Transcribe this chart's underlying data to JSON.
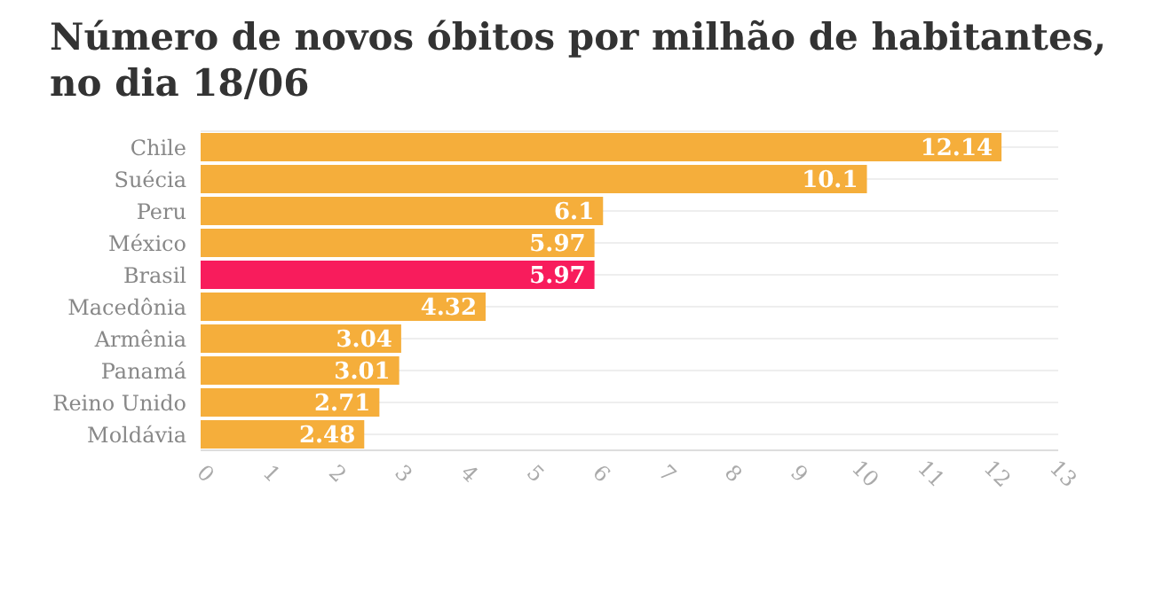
{
  "chart_data": {
    "type": "bar",
    "orientation": "horizontal",
    "title": "Número de novos óbitos por milhão de habitantes, no dia 18/06",
    "categories": [
      "Chile",
      "Suécia",
      "Peru",
      "México",
      "Brasil",
      "Macedônia",
      "Armênia",
      "Panamá",
      "Reino Unido",
      "Moldávia"
    ],
    "values": [
      12.14,
      10.1,
      6.1,
      5.97,
      5.97,
      4.32,
      3.04,
      3.01,
      2.71,
      2.48
    ],
    "colors": [
      "#f5ae3b",
      "#f5ae3b",
      "#f5ae3b",
      "#f5ae3b",
      "#f81c5c",
      "#f5ae3b",
      "#f5ae3b",
      "#f5ae3b",
      "#f5ae3b",
      "#f5ae3b"
    ],
    "xlim": [
      0,
      13
    ],
    "xticks": [
      0,
      1,
      2,
      3,
      4,
      5,
      6,
      7,
      8,
      9,
      10,
      11,
      12,
      13
    ],
    "grid": "y",
    "data_labels": true
  }
}
